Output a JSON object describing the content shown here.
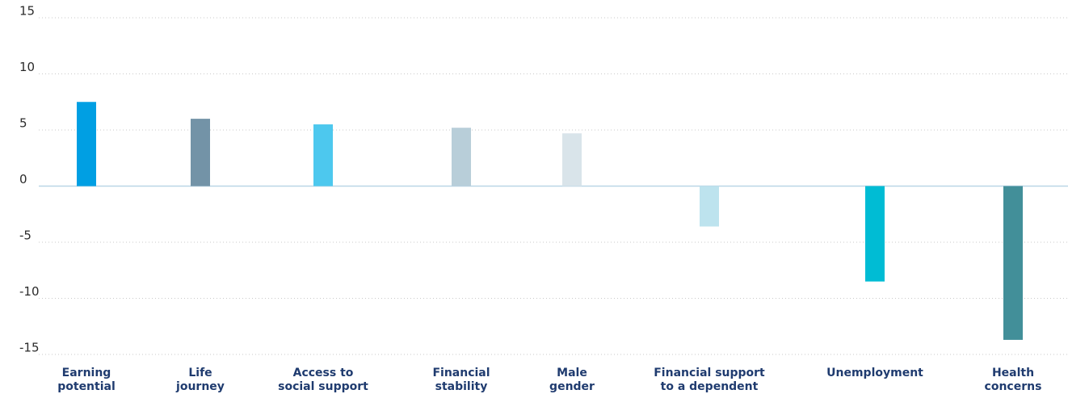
{
  "chart_data": {
    "type": "bar",
    "categories": [
      [
        "Earning",
        "potential"
      ],
      [
        "Life",
        "journey"
      ],
      [
        "Access to",
        "social support"
      ],
      [
        "Financial",
        "stability"
      ],
      [
        "Male",
        "gender"
      ],
      [
        "Financial support",
        "to a dependent"
      ],
      [
        "Unemployment"
      ],
      [
        "Health",
        "concerns"
      ]
    ],
    "values": [
      7.5,
      6.0,
      5.5,
      5.2,
      4.7,
      -3.6,
      -8.5,
      -13.7
    ],
    "colors": [
      "#009fe3",
      "#7393a7",
      "#4dc8ee",
      "#b8ced9",
      "#d9e4ea",
      "#bde3ee",
      "#00bcd4",
      "#428f99"
    ],
    "ylim": [
      -15,
      15
    ],
    "yticks": [
      -15,
      -10,
      -5,
      0,
      5,
      10,
      15
    ],
    "grid": true
  }
}
